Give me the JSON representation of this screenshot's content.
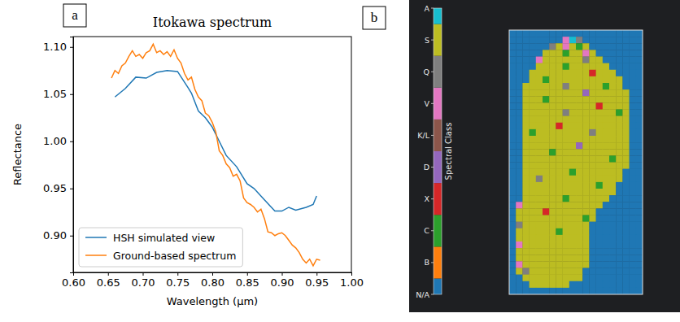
{
  "chart_data": [
    {
      "type": "line",
      "panel_label": "a",
      "title": "Itokawa spectrum",
      "x_label": "Wavelength (μm)",
      "y_label": "Reflectance",
      "xlim": [
        0.6,
        1.0
      ],
      "xticks": [
        {
          "value": 0.6,
          "label": "0.60"
        },
        {
          "value": 0.65,
          "label": "0.65"
        },
        {
          "value": 0.7,
          "label": "0.70"
        },
        {
          "value": 0.75,
          "label": "0.75"
        },
        {
          "value": 0.8,
          "label": "0.80"
        },
        {
          "value": 0.85,
          "label": "0.85"
        },
        {
          "value": 0.9,
          "label": "0.90"
        },
        {
          "value": 0.95,
          "label": "0.95"
        },
        {
          "value": 1.0,
          "label": "1.00"
        }
      ],
      "ylim": [
        0.861,
        1.111
      ],
      "yticks": [
        {
          "value": 0.9,
          "label": "0.90"
        },
        {
          "value": 0.95,
          "label": "0.95"
        },
        {
          "value": 1.0,
          "label": "1.00"
        },
        {
          "value": 1.05,
          "label": "1.05"
        },
        {
          "value": 1.1,
          "label": "1.10"
        }
      ],
      "legend": "lower left",
      "series": [
        {
          "name": "HSH simulated view",
          "color": "#1f77b4",
          "x": [
            0.66,
            0.675,
            0.69,
            0.705,
            0.72,
            0.735,
            0.75,
            0.765,
            0.77,
            0.78,
            0.79,
            0.8,
            0.81,
            0.82,
            0.835,
            0.85,
            0.86,
            0.875,
            0.89,
            0.9,
            0.91,
            0.92,
            0.935,
            0.945,
            0.95
          ],
          "values": [
            1.047,
            1.056,
            1.068,
            1.067,
            1.073,
            1.075,
            1.074,
            1.057,
            1.051,
            1.032,
            1.025,
            1.015,
            1.0,
            0.985,
            0.973,
            0.955,
            0.95,
            0.938,
            0.926,
            0.926,
            0.93,
            0.927,
            0.93,
            0.933,
            0.942
          ]
        },
        {
          "name": "Ground-based spectrum",
          "color": "#ff7f0e",
          "x": [
            0.655,
            0.66,
            0.665,
            0.67,
            0.675,
            0.68,
            0.685,
            0.69,
            0.695,
            0.7,
            0.705,
            0.71,
            0.715,
            0.72,
            0.725,
            0.73,
            0.735,
            0.74,
            0.745,
            0.75,
            0.755,
            0.76,
            0.765,
            0.77,
            0.775,
            0.78,
            0.785,
            0.79,
            0.795,
            0.8,
            0.805,
            0.81,
            0.815,
            0.82,
            0.825,
            0.83,
            0.835,
            0.84,
            0.845,
            0.85,
            0.855,
            0.86,
            0.865,
            0.87,
            0.875,
            0.88,
            0.885,
            0.89,
            0.895,
            0.9,
            0.905,
            0.91,
            0.915,
            0.92,
            0.925,
            0.93,
            0.935,
            0.94,
            0.945,
            0.95,
            0.955
          ],
          "values": [
            1.067,
            1.075,
            1.072,
            1.08,
            1.083,
            1.09,
            1.096,
            1.09,
            1.092,
            1.088,
            1.094,
            1.096,
            1.103,
            1.094,
            1.096,
            1.092,
            1.095,
            1.09,
            1.097,
            1.088,
            1.083,
            1.072,
            1.065,
            1.068,
            1.055,
            1.047,
            1.043,
            1.03,
            1.027,
            1.02,
            1.01,
            0.99,
            0.985,
            0.976,
            0.972,
            0.963,
            0.965,
            0.958,
            0.94,
            0.935,
            0.933,
            0.93,
            0.925,
            0.928,
            0.918,
            0.904,
            0.903,
            0.9,
            0.902,
            0.903,
            0.9,
            0.895,
            0.89,
            0.887,
            0.882,
            0.875,
            0.871,
            0.875,
            0.868,
            0.875,
            0.874
          ]
        }
      ]
    },
    {
      "type": "heatmap",
      "panel_label": "b",
      "tick_labels": false,
      "colorbar": {
        "label": "Spectral Class",
        "range": [
          0,
          9
        ],
        "ticks": [
          {
            "value": 0,
            "label": "N/A"
          },
          {
            "value": 1,
            "label": "B"
          },
          {
            "value": 2,
            "label": "C"
          },
          {
            "value": 3,
            "label": "X"
          },
          {
            "value": 4,
            "label": "D"
          },
          {
            "value": 5,
            "label": "K/L"
          },
          {
            "value": 6,
            "label": "V"
          },
          {
            "value": 7,
            "label": "Q"
          },
          {
            "value": 8,
            "label": "S"
          },
          {
            "value": 9,
            "label": "A"
          }
        ],
        "colors": [
          "#1f77b4",
          "#ff7f0e",
          "#2ca02c",
          "#d62728",
          "#9467bd",
          "#8c564b",
          "#e377c2",
          "#7f7f7f",
          "#bcbd22",
          "#17becf"
        ]
      },
      "cells": [
        [
          0,
          0,
          0,
          0,
          0,
          0,
          0,
          0,
          0,
          0,
          0,
          0,
          0,
          0,
          0,
          0,
          0,
          0,
          0,
          0
        ],
        [
          0,
          0,
          0,
          0,
          0,
          0,
          0,
          0,
          6,
          9,
          7,
          0,
          0,
          0,
          0,
          0,
          0,
          0,
          0,
          0
        ],
        [
          0,
          0,
          0,
          0,
          0,
          0,
          7,
          8,
          6,
          8,
          2,
          8,
          0,
          0,
          0,
          0,
          0,
          0,
          0,
          0
        ],
        [
          0,
          0,
          0,
          0,
          0,
          8,
          8,
          8,
          2,
          8,
          8,
          6,
          8,
          0,
          0,
          0,
          0,
          0,
          0,
          0
        ],
        [
          0,
          0,
          0,
          0,
          6,
          8,
          8,
          8,
          8,
          8,
          8,
          7,
          8,
          8,
          0,
          0,
          0,
          0,
          0,
          0
        ],
        [
          0,
          0,
          0,
          0,
          8,
          8,
          8,
          8,
          2,
          8,
          8,
          8,
          8,
          8,
          8,
          0,
          0,
          0,
          0,
          0
        ],
        [
          0,
          0,
          0,
          8,
          8,
          8,
          8,
          8,
          8,
          8,
          8,
          8,
          3,
          8,
          8,
          8,
          0,
          0,
          0,
          0
        ],
        [
          0,
          0,
          0,
          8,
          8,
          2,
          8,
          8,
          8,
          8,
          8,
          8,
          8,
          8,
          8,
          8,
          8,
          0,
          0,
          0
        ],
        [
          0,
          0,
          8,
          8,
          8,
          8,
          8,
          8,
          7,
          8,
          8,
          8,
          8,
          8,
          2,
          8,
          8,
          0,
          0,
          0
        ],
        [
          0,
          0,
          8,
          8,
          8,
          8,
          8,
          8,
          8,
          8,
          8,
          4,
          8,
          8,
          8,
          8,
          8,
          8,
          0,
          0
        ],
        [
          0,
          0,
          8,
          8,
          8,
          2,
          8,
          8,
          8,
          8,
          8,
          8,
          8,
          8,
          8,
          8,
          8,
          8,
          0,
          0
        ],
        [
          0,
          0,
          8,
          8,
          8,
          8,
          8,
          8,
          8,
          8,
          8,
          8,
          8,
          3,
          8,
          8,
          8,
          8,
          0,
          0
        ],
        [
          0,
          0,
          8,
          8,
          8,
          8,
          8,
          8,
          7,
          8,
          8,
          8,
          8,
          8,
          8,
          8,
          2,
          8,
          0,
          0
        ],
        [
          0,
          0,
          8,
          8,
          8,
          8,
          8,
          8,
          8,
          8,
          8,
          8,
          8,
          8,
          8,
          8,
          8,
          8,
          0,
          0
        ],
        [
          0,
          0,
          8,
          8,
          8,
          8,
          8,
          3,
          8,
          8,
          8,
          8,
          8,
          8,
          8,
          8,
          8,
          8,
          0,
          0
        ],
        [
          0,
          0,
          8,
          2,
          8,
          8,
          8,
          8,
          8,
          8,
          8,
          8,
          7,
          8,
          8,
          8,
          8,
          8,
          0,
          0
        ],
        [
          0,
          0,
          8,
          8,
          8,
          8,
          8,
          8,
          8,
          8,
          8,
          8,
          8,
          8,
          8,
          8,
          8,
          8,
          0,
          0
        ],
        [
          0,
          0,
          8,
          8,
          8,
          8,
          8,
          8,
          8,
          8,
          4,
          8,
          8,
          8,
          8,
          8,
          8,
          8,
          0,
          0
        ],
        [
          0,
          0,
          8,
          8,
          8,
          8,
          2,
          8,
          8,
          8,
          8,
          8,
          8,
          8,
          8,
          8,
          8,
          8,
          0,
          0
        ],
        [
          0,
          0,
          8,
          8,
          8,
          8,
          8,
          8,
          8,
          8,
          8,
          8,
          8,
          8,
          8,
          2,
          8,
          8,
          0,
          0
        ],
        [
          0,
          0,
          8,
          8,
          8,
          8,
          8,
          8,
          8,
          8,
          8,
          8,
          8,
          8,
          8,
          8,
          8,
          8,
          0,
          0
        ],
        [
          0,
          0,
          8,
          8,
          8,
          8,
          8,
          8,
          8,
          2,
          8,
          8,
          8,
          8,
          8,
          8,
          8,
          0,
          0,
          0
        ],
        [
          0,
          0,
          8,
          8,
          7,
          8,
          8,
          8,
          8,
          8,
          8,
          8,
          8,
          8,
          8,
          8,
          8,
          0,
          0,
          0
        ],
        [
          0,
          0,
          8,
          8,
          8,
          8,
          8,
          8,
          8,
          8,
          8,
          8,
          8,
          2,
          8,
          8,
          0,
          0,
          0,
          0
        ],
        [
          0,
          0,
          8,
          8,
          8,
          8,
          8,
          8,
          8,
          8,
          8,
          8,
          8,
          8,
          8,
          8,
          0,
          0,
          0,
          0
        ],
        [
          0,
          0,
          8,
          8,
          8,
          8,
          8,
          8,
          2,
          8,
          8,
          8,
          8,
          8,
          8,
          0,
          0,
          0,
          0,
          0
        ],
        [
          0,
          6,
          8,
          8,
          8,
          8,
          8,
          8,
          8,
          8,
          8,
          8,
          8,
          8,
          0,
          0,
          0,
          0,
          0,
          0
        ],
        [
          0,
          8,
          8,
          8,
          8,
          3,
          8,
          8,
          8,
          8,
          8,
          8,
          8,
          0,
          0,
          0,
          0,
          0,
          0,
          0
        ],
        [
          0,
          8,
          8,
          8,
          8,
          8,
          8,
          8,
          8,
          8,
          8,
          2,
          8,
          0,
          0,
          0,
          0,
          0,
          0,
          0
        ],
        [
          0,
          7,
          8,
          8,
          8,
          8,
          8,
          8,
          8,
          8,
          8,
          8,
          0,
          0,
          0,
          0,
          0,
          0,
          0,
          0
        ],
        [
          0,
          8,
          8,
          8,
          8,
          8,
          8,
          2,
          8,
          8,
          8,
          8,
          0,
          0,
          0,
          0,
          0,
          0,
          0,
          0
        ],
        [
          0,
          8,
          8,
          8,
          8,
          8,
          8,
          8,
          8,
          8,
          8,
          8,
          0,
          0,
          0,
          0,
          0,
          0,
          0,
          0
        ],
        [
          0,
          6,
          8,
          8,
          8,
          8,
          8,
          8,
          8,
          8,
          8,
          8,
          0,
          0,
          0,
          0,
          0,
          0,
          0,
          0
        ],
        [
          0,
          8,
          8,
          8,
          8,
          8,
          8,
          8,
          8,
          8,
          8,
          8,
          0,
          0,
          0,
          0,
          0,
          0,
          0,
          0
        ],
        [
          0,
          8,
          8,
          8,
          8,
          8,
          8,
          8,
          8,
          8,
          8,
          8,
          0,
          0,
          0,
          0,
          0,
          0,
          0,
          0
        ],
        [
          0,
          6,
          8,
          8,
          8,
          8,
          8,
          8,
          8,
          8,
          8,
          8,
          0,
          0,
          0,
          0,
          0,
          0,
          0,
          0
        ],
        [
          0,
          8,
          7,
          8,
          8,
          8,
          8,
          8,
          8,
          8,
          8,
          0,
          0,
          0,
          0,
          0,
          0,
          0,
          0,
          0
        ],
        [
          0,
          0,
          8,
          8,
          8,
          8,
          8,
          8,
          8,
          8,
          8,
          0,
          0,
          0,
          0,
          0,
          0,
          0,
          0,
          0
        ],
        [
          0,
          0,
          0,
          8,
          8,
          8,
          8,
          8,
          8,
          0,
          0,
          0,
          0,
          0,
          0,
          0,
          0,
          0,
          0,
          0
        ],
        [
          0,
          0,
          0,
          0,
          0,
          0,
          0,
          0,
          0,
          0,
          0,
          0,
          0,
          0,
          0,
          0,
          0,
          0,
          0,
          0
        ]
      ]
    }
  ]
}
